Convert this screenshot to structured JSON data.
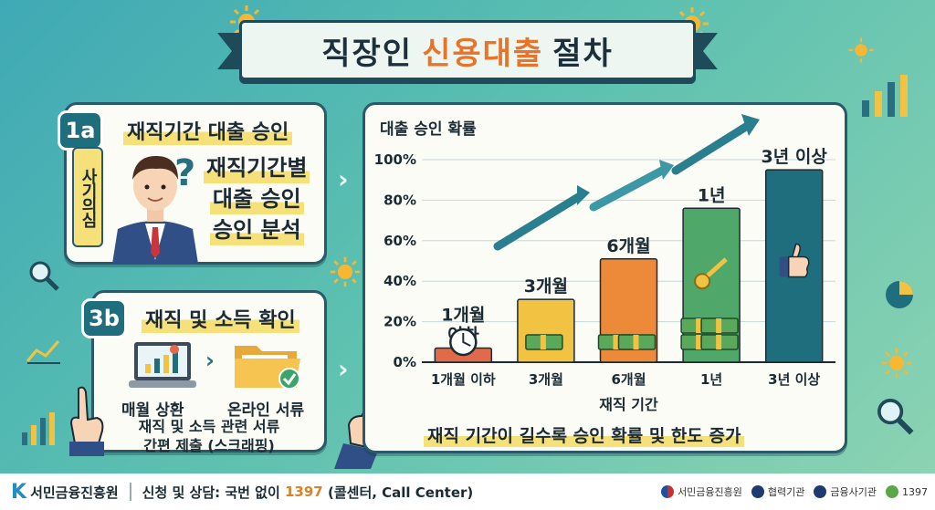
{
  "title": {
    "part1": "직장인",
    "highlight": "신용대출",
    "part2": "절차"
  },
  "step1": {
    "badge": "1a",
    "title": "재직기간 대출 승인",
    "tag": "사기의심",
    "analysis": [
      "재직기간별",
      "대출 승인",
      "승인 분석"
    ]
  },
  "step2": {
    "badge": "3b",
    "title": "재직 및 소득 확인",
    "item1": "매월 상환",
    "item2": "온라인 서류",
    "desc": [
      "재직 및 소득 관련 서류",
      "간편 제출 (스크래핑)"
    ]
  },
  "chart_data": {
    "type": "bar",
    "ylabel": "대출 승인 확률",
    "xlabel": "재직 기간",
    "ylim": [
      0,
      100
    ],
    "yticks": [
      "0%",
      "20%",
      "40%",
      "60%",
      "80%",
      "100%"
    ],
    "categories": [
      "1개월 이하",
      "3개월",
      "6개월",
      "1년",
      "3년 이상"
    ],
    "bar_labels": [
      "1개월\n이하",
      "3개월",
      "6개월",
      "1년",
      "3년 이상"
    ],
    "values": [
      7,
      31,
      51,
      76,
      95
    ],
    "colors": [
      "#e06a4a",
      "#f2c343",
      "#ec8a3a",
      "#4fa86a",
      "#1f6e7e"
    ],
    "caption": "재직 기간이 길수록 승인 확률 및 한도 증가",
    "grid": true
  },
  "footer": {
    "org": "서민금융진흥원",
    "contact_prefix": "신청 및 상담: 국번 없이",
    "number": "1397",
    "contact_suffix": "(콜센터, Call Center)",
    "partners": [
      "서민금융진흥원",
      "협력기관",
      "금융사기관",
      "1397"
    ]
  }
}
